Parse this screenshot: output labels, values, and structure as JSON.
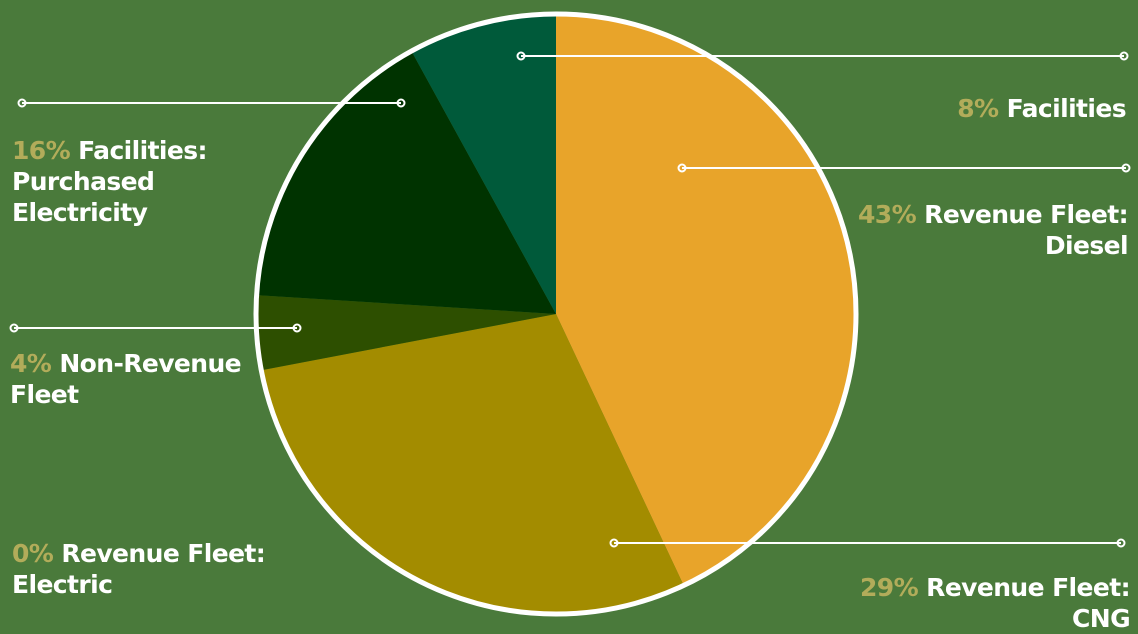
{
  "chart_data": {
    "type": "pie",
    "slices": [
      {
        "label": "Revenue Fleet: Diesel",
        "pct_text": "43%",
        "value": 43,
        "color": "#e8a42a"
      },
      {
        "label": "Revenue Fleet: CNG",
        "pct_text": "29%",
        "value": 29,
        "color": "#a38c00"
      },
      {
        "label": "Revenue Fleet: Electric",
        "pct_text": "0%",
        "value": 0,
        "color": "#a38c00"
      },
      {
        "label": "Non-Revenue Fleet",
        "pct_text": "4%",
        "value": 4,
        "color": "#2d4f00"
      },
      {
        "label": "Facilities: Purchased Electricity",
        "pct_text": "16%",
        "value": 16,
        "color": "#003300"
      },
      {
        "label": "Facilities",
        "pct_text": "8%",
        "value": 8,
        "color": "#005a3a"
      }
    ],
    "colors": {
      "background": "#4a7a3b",
      "outline": "#ffffff",
      "percent_text": "#b2ac5a",
      "label_text": "#ffffff"
    }
  }
}
